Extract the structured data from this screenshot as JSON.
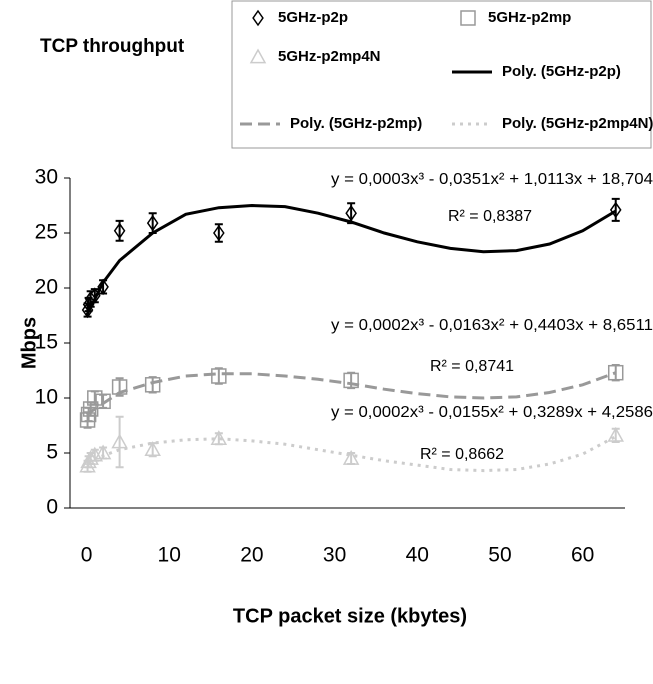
{
  "chart_data": {
    "type": "scatter",
    "title": "TCP throughput",
    "x_label": "TCP packet size (kbytes)",
    "y_label": "Mbps",
    "xlim": [
      -2,
      65
    ],
    "xticks": [
      0,
      10,
      20,
      30,
      40,
      50,
      60
    ],
    "ylim": [
      0,
      30
    ],
    "yticks": [
      0,
      5,
      10,
      15,
      20,
      25,
      30
    ],
    "series": [
      {
        "name": "5GHz-p2p",
        "color": "#000000",
        "marker": "diamond",
        "x": [
          0.125,
          0.25,
          0.5,
          1,
          2,
          4,
          8,
          16,
          32,
          64
        ],
        "values": [
          18,
          18.5,
          19,
          19.3,
          20.1,
          25.2,
          25.9,
          25,
          26.8,
          27.1
        ],
        "errors": [
          0.6,
          0.6,
          0.7,
          0.6,
          0.6,
          0.9,
          0.9,
          0.8,
          0.9,
          1
        ]
      },
      {
        "name": "5GHz-p2mp",
        "color": "#999999",
        "marker": "square",
        "x": [
          0.125,
          0.25,
          0.5,
          1,
          2,
          4,
          8,
          16,
          32,
          64
        ],
        "values": [
          8,
          8.5,
          9,
          10,
          9.7,
          11,
          11.2,
          12,
          11.6,
          12.3
        ],
        "errors": [
          0.7,
          0.6,
          0.6,
          0.6,
          0.6,
          0.8,
          0.7,
          0.7,
          0.7,
          0.7
        ]
      },
      {
        "name": "5GHz-p2mp4N",
        "color": "#cccccc",
        "marker": "triangle",
        "x": [
          0.125,
          0.25,
          0.5,
          1,
          2,
          4,
          8,
          16,
          32,
          64
        ],
        "values": [
          3.8,
          4.2,
          4.5,
          4.8,
          5,
          6,
          5.3,
          6.3,
          4.5,
          6.6
        ],
        "errors": [
          0.5,
          0.5,
          0.5,
          0.5,
          0.5,
          2.3,
          0.6,
          0.5,
          0.5,
          0.6
        ]
      },
      {
        "name": "Poly. (5GHz-p2p)",
        "color": "#000000",
        "line_style": "solid",
        "x": [
          0,
          2,
          4,
          8,
          12,
          16,
          20,
          24,
          28,
          32,
          36,
          40,
          44,
          48,
          52,
          56,
          60,
          64
        ],
        "values": [
          17.5,
          20.5,
          22.5,
          25,
          26.7,
          27.3,
          27.5,
          27.4,
          26.8,
          26,
          25,
          24.2,
          23.6,
          23.3,
          23.4,
          24,
          25.2,
          27
        ]
      },
      {
        "name": "Poly. (5GHz-p2mp)",
        "color": "#999999",
        "line_style": "dashed",
        "x": [
          0,
          4,
          8,
          12,
          16,
          20,
          24,
          28,
          32,
          36,
          40,
          44,
          48,
          52,
          56,
          60,
          64
        ],
        "values": [
          8.5,
          10.5,
          11.4,
          12,
          12.2,
          12.2,
          12,
          11.7,
          11.3,
          10.8,
          10.4,
          10.1,
          10,
          10.1,
          10.5,
          11.2,
          12.3
        ]
      },
      {
        "name": "Poly. (5GHz-p2mp4N)",
        "color": "#cccccc",
        "line_style": "dotted",
        "x": [
          0,
          4,
          8,
          12,
          16,
          20,
          24,
          28,
          32,
          36,
          40,
          44,
          48,
          52,
          56,
          60,
          64
        ],
        "values": [
          4.2,
          5.3,
          5.9,
          6.2,
          6.3,
          6.1,
          5.8,
          5.3,
          4.8,
          4.3,
          3.9,
          3.5,
          3.4,
          3.5,
          4,
          4.9,
          6.5
        ]
      }
    ],
    "annotations": [
      "y = 0,0003x³ - 0,0351x² + 1,0113x + 18,704",
      "R² = 0,8387",
      "y = 0,0002x³ - 0,0163x² + 0,4403x + 8,6511",
      "R² = 0,8741",
      "y = 0,0002x³ - 0,0155x² + 0,3289x + 4,2586",
      "R² = 0,8662"
    ]
  }
}
